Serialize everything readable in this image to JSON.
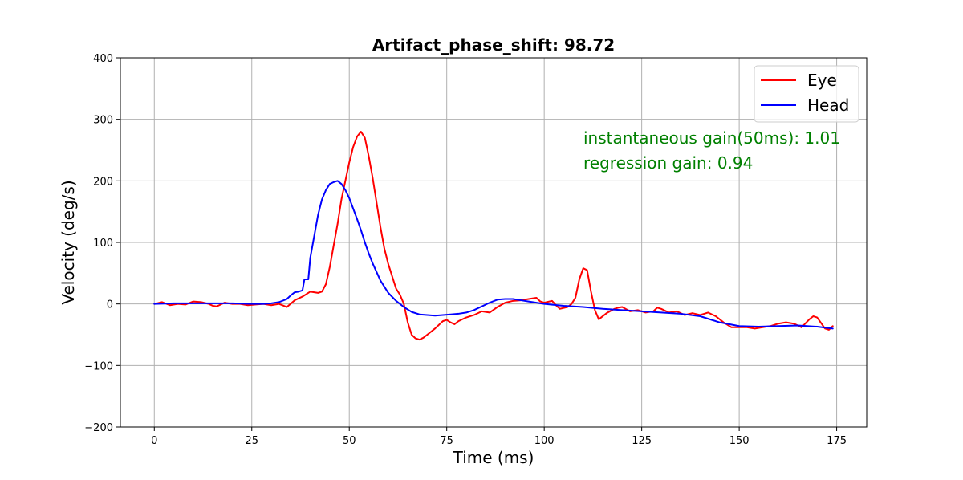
{
  "chart_data": {
    "type": "line",
    "title": "Artifact_phase_shift: 98.72",
    "xlabel": "Time (ms)",
    "ylabel": "Velocity (deg/s)",
    "xlim": [
      -8.7,
      182.7
    ],
    "ylim": [
      -200,
      400
    ],
    "xticks": [
      0,
      25,
      50,
      75,
      100,
      125,
      150,
      175
    ],
    "yticks": [
      -200,
      -100,
      0,
      100,
      200,
      300,
      400
    ],
    "xtick_labels": [
      "0",
      "25",
      "50",
      "75",
      "100",
      "125",
      "150",
      "175"
    ],
    "ytick_labels": [
      "−200",
      "−100",
      "0",
      "100",
      "200",
      "300",
      "400"
    ],
    "grid": true,
    "legend_position": "top-right",
    "annotations": [
      "instantaneous gain(50ms): 1.01",
      "regression gain: 0.94"
    ],
    "annotation_color": "#008000",
    "series": [
      {
        "name": "Eye",
        "color": "#ff0000",
        "x": [
          0,
          2,
          4,
          6,
          8,
          10,
          12,
          14,
          15,
          16,
          18,
          20,
          22,
          24,
          26,
          28,
          30,
          32,
          34,
          36,
          38,
          40,
          42,
          43,
          44,
          45,
          46,
          47,
          48,
          49,
          50,
          51,
          52,
          53,
          54,
          55,
          56,
          57,
          58,
          59,
          60,
          61,
          62,
          63,
          64,
          65,
          66,
          67,
          68,
          69,
          70,
          72,
          74,
          75,
          76,
          77,
          78,
          80,
          82,
          84,
          86,
          88,
          90,
          92,
          94,
          96,
          98,
          99,
          100,
          102,
          103,
          104,
          106,
          107,
          108,
          109,
          110,
          111,
          112,
          113,
          114,
          116,
          118,
          119,
          120,
          122,
          124,
          126,
          128,
          129,
          130,
          132,
          134,
          136,
          138,
          140,
          142,
          144,
          146,
          148,
          150,
          152,
          154,
          156,
          158,
          160,
          162,
          164,
          166,
          168,
          169,
          170,
          172,
          173,
          174
        ],
        "y": [
          0,
          3,
          -2,
          0,
          -1,
          4,
          3,
          0,
          -3,
          -4,
          2,
          0,
          0,
          -2,
          -1,
          0,
          -2,
          0,
          -5,
          6,
          12,
          20,
          18,
          20,
          32,
          60,
          95,
          130,
          170,
          200,
          230,
          255,
          272,
          280,
          270,
          240,
          205,
          165,
          125,
          90,
          65,
          45,
          25,
          15,
          0,
          -30,
          -50,
          -56,
          -58,
          -55,
          -50,
          -40,
          -28,
          -26,
          -30,
          -33,
          -28,
          -22,
          -18,
          -12,
          -14,
          -5,
          2,
          5,
          6,
          8,
          10,
          4,
          2,
          5,
          -2,
          -8,
          -5,
          0,
          10,
          40,
          58,
          55,
          20,
          -10,
          -25,
          -15,
          -8,
          -6,
          -5,
          -12,
          -10,
          -14,
          -12,
          -6,
          -8,
          -14,
          -12,
          -18,
          -15,
          -18,
          -14,
          -20,
          -30,
          -38,
          -38,
          -38,
          -40,
          -38,
          -36,
          -32,
          -30,
          -32,
          -38,
          -25,
          -20,
          -22,
          -40,
          -42,
          -36
        ]
      },
      {
        "name": "Head",
        "color": "#0000ff",
        "x": [
          0,
          5,
          10,
          15,
          20,
          25,
          28,
          30,
          32,
          34,
          35,
          36,
          37,
          38,
          38.5,
          39.5,
          40,
          41,
          42,
          43,
          44,
          45,
          46,
          47,
          48,
          49,
          50,
          51,
          52,
          53,
          54,
          55,
          56,
          57,
          58,
          59,
          60,
          62,
          64,
          66,
          68,
          70,
          72,
          74,
          76,
          78,
          80,
          82,
          84,
          86,
          88,
          90,
          92,
          94,
          96,
          98,
          100,
          105,
          110,
          115,
          120,
          125,
          130,
          135,
          140,
          145,
          150,
          155,
          160,
          165,
          170,
          174
        ],
        "y": [
          0,
          1,
          1,
          1,
          1,
          0,
          0,
          1,
          3,
          8,
          14,
          19,
          20,
          22,
          40,
          40,
          75,
          110,
          145,
          170,
          185,
          195,
          198,
          200,
          195,
          185,
          172,
          155,
          138,
          120,
          100,
          82,
          66,
          52,
          38,
          28,
          18,
          5,
          -5,
          -13,
          -17,
          -18,
          -19,
          -18,
          -17,
          -16,
          -14,
          -10,
          -4,
          2,
          7,
          8,
          8,
          6,
          4,
          2,
          0,
          -3,
          -5,
          -8,
          -10,
          -12,
          -14,
          -16,
          -20,
          -30,
          -36,
          -37,
          -36,
          -35,
          -37,
          -40
        ]
      }
    ]
  }
}
